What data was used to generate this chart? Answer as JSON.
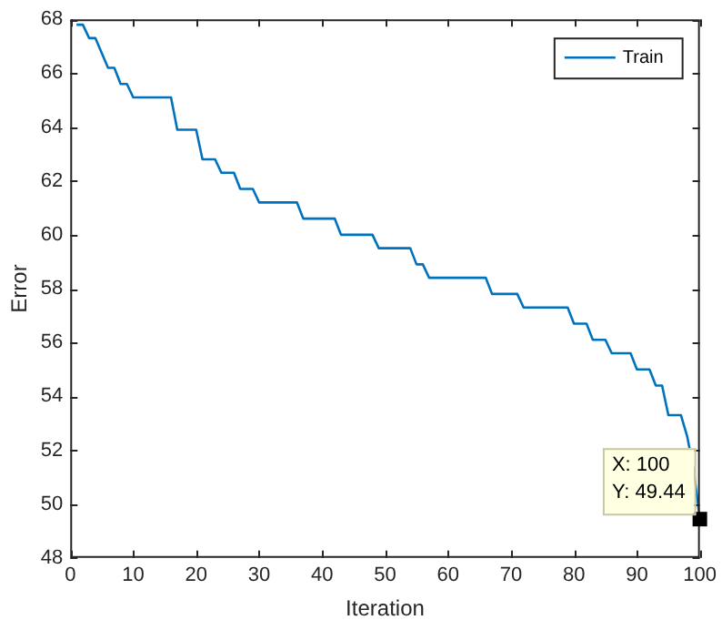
{
  "chart_data": {
    "type": "step",
    "xlabel": "Iteration",
    "ylabel": "Error",
    "xlim": [
      0,
      100
    ],
    "xticks": [
      0,
      10,
      20,
      30,
      40,
      50,
      60,
      70,
      80,
      90,
      100
    ],
    "ylim": [
      48,
      68
    ],
    "yticks": [
      48,
      50,
      52,
      54,
      56,
      58,
      60,
      62,
      64,
      66,
      68
    ],
    "grid": false,
    "legend": "top right",
    "line_style": "solid",
    "marker": "none",
    "annotations": [
      {
        "text": "X: 100\nY: 49.44",
        "x": 100,
        "y": 49.44
      }
    ],
    "series": [
      {
        "name": "Train",
        "color": "#0072bd",
        "x": [
          1,
          2,
          3,
          4,
          6,
          7,
          8,
          9,
          10,
          16,
          17,
          20,
          21,
          23,
          24,
          26,
          27,
          29,
          30,
          36,
          37,
          42,
          43,
          48,
          49,
          54,
          55,
          56,
          57,
          66,
          67,
          71,
          72,
          79,
          80,
          82,
          83,
          85,
          86,
          89,
          90,
          92,
          93,
          94,
          95,
          97,
          98,
          99,
          100
        ],
        "values": [
          67.8,
          67.8,
          67.3,
          67.3,
          66.2,
          66.2,
          65.6,
          65.6,
          65.1,
          65.1,
          63.9,
          63.9,
          62.8,
          62.8,
          62.3,
          62.3,
          61.7,
          61.7,
          61.2,
          61.2,
          60.6,
          60.6,
          60.0,
          60.0,
          59.5,
          59.5,
          58.9,
          58.9,
          58.4,
          58.4,
          57.8,
          57.8,
          57.3,
          57.3,
          56.7,
          56.7,
          56.1,
          56.1,
          55.6,
          55.6,
          55.0,
          55.0,
          54.4,
          54.4,
          53.3,
          53.3,
          52.5,
          51.3,
          49.44
        ]
      }
    ]
  }
}
